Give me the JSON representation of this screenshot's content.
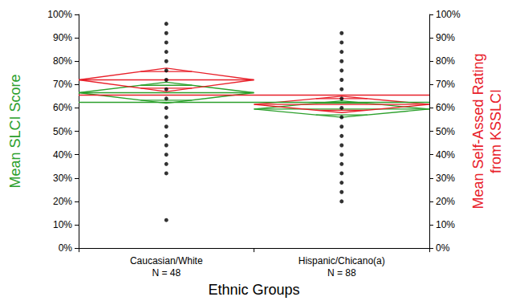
{
  "chart_data": {
    "type": "means_diamonds",
    "x_label": "Ethnic Groups",
    "y_label": "Mean SLCI Score",
    "y2_label": "Mean Self-Assed Rating\nfrom KSSLCI",
    "categories": [
      "Caucasian/White\nN = 48",
      "Hispanic/Chicano(a)\nN = 88"
    ],
    "ylim": [
      0,
      100
    ],
    "yticks": [
      {
        "value": 0,
        "label": "0%"
      },
      {
        "value": 10,
        "label": "10%"
      },
      {
        "value": 20,
        "label": "20%"
      },
      {
        "value": 30,
        "label": "30%"
      },
      {
        "value": 40,
        "label": "40%"
      },
      {
        "value": 50,
        "label": "50%"
      },
      {
        "value": 60,
        "label": "60%"
      },
      {
        "value": 70,
        "label": "70%"
      },
      {
        "value": 80,
        "label": "80%"
      },
      {
        "value": 90,
        "label": "90%"
      },
      {
        "value": 100,
        "label": "100%"
      }
    ],
    "y2lim": [
      0,
      100
    ],
    "y2ticks": [
      {
        "value": 0,
        "label": "0%"
      },
      {
        "value": 10,
        "label": "10%"
      },
      {
        "value": 20,
        "label": "20%"
      },
      {
        "value": 30,
        "label": "30%"
      },
      {
        "value": 40,
        "label": "40%"
      },
      {
        "value": 50,
        "label": "50%"
      },
      {
        "value": 60,
        "label": "60%"
      },
      {
        "value": 70,
        "label": "70%"
      },
      {
        "value": 80,
        "label": "80%"
      },
      {
        "value": 90,
        "label": "90%"
      },
      {
        "value": 100,
        "label": "100%"
      }
    ],
    "grid": false,
    "series": [
      {
        "type": "scatter",
        "color": "#000000",
        "marker": "circle",
        "axis": "y",
        "values": [
          [
            96,
            92,
            88,
            84,
            80,
            76,
            72,
            68,
            64,
            60,
            56,
            52,
            48,
            44,
            40,
            36,
            32,
            12
          ],
          [
            92,
            88,
            84,
            80,
            76,
            72,
            68,
            64,
            60,
            56,
            52,
            48,
            44,
            40,
            36,
            32,
            28,
            24,
            20
          ]
        ]
      },
      {
        "type": "diamond",
        "color": "#2ca02c",
        "axis": "y",
        "values": [
          66.5,
          59.5
        ],
        "lower": [
          62,
          56
        ],
        "upper": [
          71,
          63
        ],
        "grand_mean": 62.5
      },
      {
        "type": "diamond",
        "color": "#e8202a",
        "axis": "y2",
        "values": [
          72,
          61.5
        ],
        "lower": [
          67,
          58
        ],
        "upper": [
          77,
          65
        ],
        "grand_mean": 65.5
      }
    ]
  }
}
